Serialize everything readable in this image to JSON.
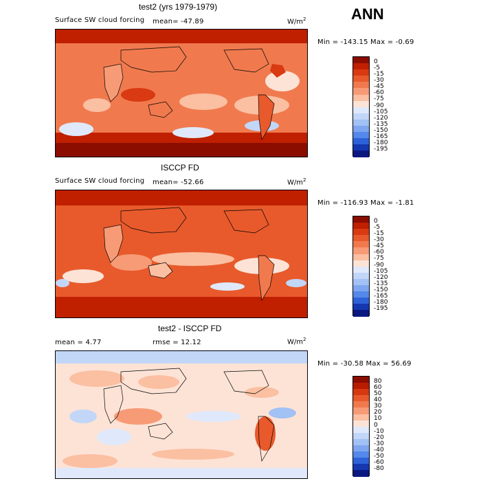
{
  "season": "ANN",
  "panels": [
    {
      "title": "test2 (yrs 1979-1979)",
      "variable": "Surface SW cloud forcing",
      "mean_text": "mean=  -47.89",
      "units": "W/m",
      "units_sup": "2",
      "minmax": "Min = -143.15 Max =  -0.69",
      "levels": [
        "0",
        "-5",
        "-15",
        "-30",
        "-45",
        "-60",
        "-75",
        "-90",
        "-105",
        "-120",
        "-135",
        "-150",
        "-165",
        "-180",
        "-195"
      ],
      "colors": [
        "#8b0d00",
        "#c01f00",
        "#d93a11",
        "#e85a2c",
        "#f07a4e",
        "#f79b76",
        "#fbbfa2",
        "#fde3d6",
        "#dfe9fb",
        "#c2d6f8",
        "#a2c1f5",
        "#7ea6f0",
        "#5488ea",
        "#2e62d8",
        "#1438b0",
        "#0b1880"
      ]
    },
    {
      "title": "ISCCP FD",
      "variable": "Surface SW cloud forcing",
      "mean_text": "mean=  -52.66",
      "units": "W/m",
      "units_sup": "2",
      "minmax": "Min = -116.93 Max =  -1.81",
      "levels": [
        "0",
        "-5",
        "-15",
        "-30",
        "-45",
        "-60",
        "-75",
        "-90",
        "-105",
        "-120",
        "-135",
        "-150",
        "-165",
        "-180",
        "-195"
      ],
      "colors": [
        "#8b0d00",
        "#c01f00",
        "#d93a11",
        "#e85a2c",
        "#f07a4e",
        "#f79b76",
        "#fbbfa2",
        "#fde3d6",
        "#dfe9fb",
        "#c2d6f8",
        "#a2c1f5",
        "#7ea6f0",
        "#5488ea",
        "#2e62d8",
        "#1438b0",
        "#0b1880"
      ]
    },
    {
      "title": "test2 - ISCCP FD",
      "mean_text": "mean =    4.77",
      "rmse_text": "rmse =   12.12",
      "units": "W/m",
      "units_sup": "2",
      "minmax": "Min = -30.58 Max =  56.69",
      "levels": [
        "80",
        "60",
        "50",
        "40",
        "30",
        "20",
        "10",
        "0",
        "-10",
        "-20",
        "-30",
        "-40",
        "-50",
        "-60",
        "-80"
      ],
      "colors": [
        "#8b0d00",
        "#b81c00",
        "#d6380f",
        "#e85a2c",
        "#f07a4e",
        "#f79b76",
        "#fbbfa2",
        "#fde3d6",
        "#dfe9fb",
        "#c2d6f8",
        "#a2c1f5",
        "#7ea6f0",
        "#5488ea",
        "#2e62d8",
        "#1438b0",
        "#0b1880"
      ]
    }
  ]
}
